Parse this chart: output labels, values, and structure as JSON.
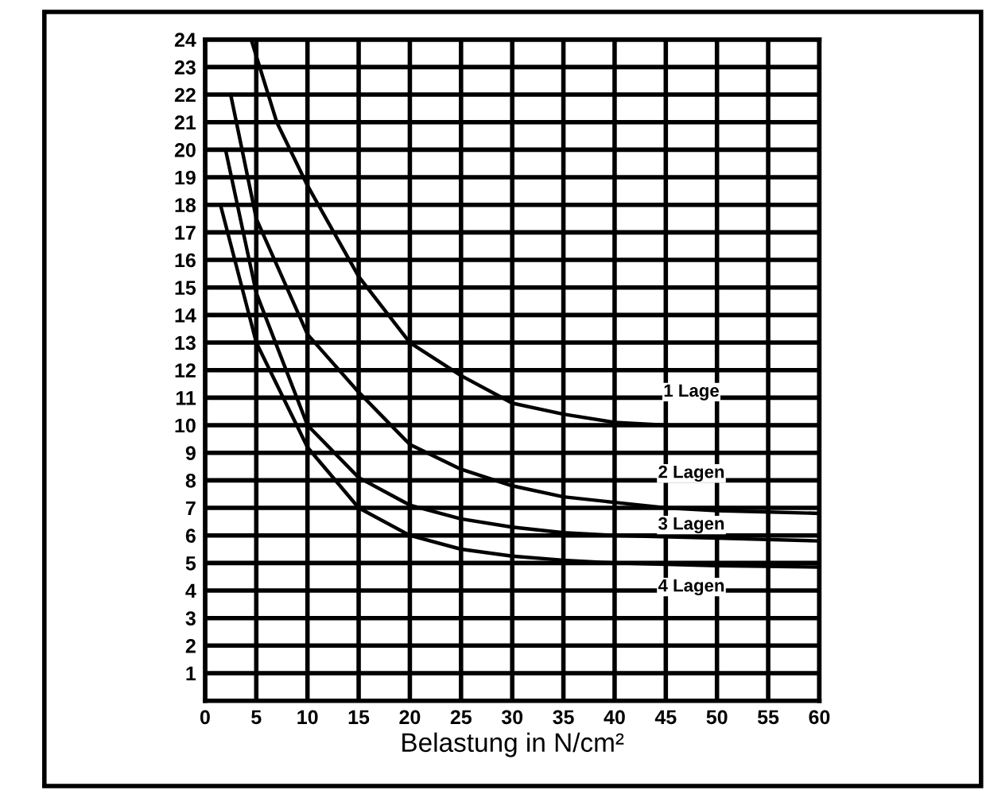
{
  "chart_data": {
    "type": "line",
    "xlabel": "Belastung in N/cm²",
    "xlim": [
      0,
      60
    ],
    "ylim": [
      0,
      24
    ],
    "xticks": [
      0,
      5,
      10,
      15,
      20,
      25,
      30,
      35,
      40,
      45,
      50,
      55,
      60
    ],
    "yticks": [
      {
        "value": 0,
        "label": null
      },
      1,
      2,
      3,
      4,
      5,
      6,
      7,
      8,
      9,
      10,
      11,
      12,
      13,
      14,
      15,
      16,
      17,
      18,
      19,
      20,
      21,
      22,
      23,
      24
    ],
    "grid": true,
    "marker": "none",
    "line_style": "solid",
    "series": [
      {
        "name": "1 Lage",
        "color": "#000000",
        "x": [
          4.5,
          7,
          10,
          15,
          20,
          25,
          30,
          35,
          40,
          45,
          50,
          60
        ],
        "values": [
          24,
          21,
          18.7,
          15.4,
          13,
          11.8,
          10.8,
          10.4,
          10.1,
          10,
          10,
          10
        ]
      },
      {
        "name": "2 Lagen",
        "color": "#000000",
        "x": [
          2.5,
          5,
          10,
          15,
          20,
          25,
          30,
          35,
          40,
          45,
          50,
          60
        ],
        "values": [
          22,
          17.5,
          13.3,
          11.2,
          9.3,
          8.4,
          7.8,
          7.4,
          7.2,
          7,
          6.9,
          6.8
        ]
      },
      {
        "name": "3 Lagen",
        "color": "#000000",
        "x": [
          2,
          5,
          10,
          15,
          20,
          25,
          30,
          35,
          40,
          50,
          60
        ],
        "values": [
          20,
          14.8,
          10,
          8.1,
          7.1,
          6.6,
          6.3,
          6.1,
          6,
          5.9,
          5.8
        ]
      },
      {
        "name": "4 Lagen",
        "color": "#000000",
        "x": [
          1.5,
          5,
          10,
          15,
          20,
          25,
          30,
          35,
          40,
          50,
          60
        ],
        "values": [
          18,
          13,
          9.2,
          7,
          6,
          5.5,
          5.25,
          5.1,
          5,
          4.9,
          4.85
        ]
      }
    ]
  }
}
